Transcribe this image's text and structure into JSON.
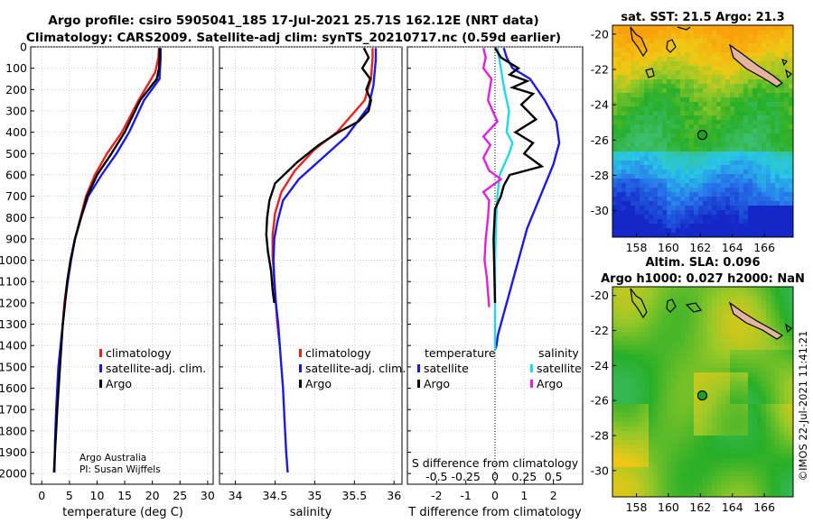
{
  "title": {
    "line1": "Argo profile: csiro 5905041_185 17-Jul-2021 25.71S 162.12E (NRT data)",
    "line2": "Climatology: CARS2009. Satellite-adj clim: synTS_20210717.nc (0.59d earlier)"
  },
  "footer": {
    "credit1": "Argo Australia",
    "credit2": "PI: Susan Wijffels",
    "imos": "©IMOS 22-Jul-2021 11:41:21"
  },
  "colors": {
    "argo": "#000000",
    "climatology": "#e8231e",
    "satellite": "#1a1ae6",
    "sat_salinity": "#22d8e8",
    "argo_salinity": "#e020e0"
  },
  "chart_data": [
    {
      "id": "temperature",
      "type": "line",
      "xlabel": "temperature (deg C)",
      "ylabel": "",
      "xlim": [
        -2,
        31
      ],
      "ylim": [
        0,
        2050
      ],
      "y_inverted": true,
      "xticks": [
        0,
        5,
        10,
        15,
        20,
        25,
        30
      ],
      "yticks": [
        0,
        100,
        200,
        300,
        400,
        500,
        600,
        700,
        800,
        900,
        1000,
        1100,
        1200,
        1300,
        1400,
        1500,
        1600,
        1700,
        1800,
        1900,
        2000
      ],
      "grid": true,
      "legend_position": "bottom-right",
      "series": [
        {
          "name": "climatology",
          "color_key": "climatology",
          "x": [
            21.2,
            21.1,
            20.5,
            17.5,
            14.5,
            11.8,
            9.6,
            8.0,
            7.0,
            6.0,
            5.2,
            4.6,
            4.1,
            3.8
          ],
          "y": [
            5,
            50,
            120,
            250,
            400,
            500,
            600,
            700,
            800,
            900,
            1000,
            1100,
            1200,
            1300
          ]
        },
        {
          "name": "satellite-adj. clim.",
          "color_key": "satellite",
          "x": [
            21.5,
            21.5,
            21.3,
            18.5,
            15.8,
            13.5,
            10.8,
            8.4,
            7.1,
            6.0,
            5.3,
            4.7,
            4.2,
            3.8,
            3.0,
            2.6,
            2.4,
            2.3
          ],
          "y": [
            5,
            50,
            150,
            250,
            400,
            500,
            600,
            700,
            800,
            900,
            1000,
            1100,
            1200,
            1300,
            1500,
            1700,
            1850,
            1995
          ]
        },
        {
          "name": "Argo",
          "color_key": "argo",
          "x": [
            21.3,
            21.3,
            21.2,
            20.8,
            17.8,
            15.0,
            12.6,
            10.0,
            8.2,
            7.1,
            6.0,
            5.2,
            4.6,
            4.2,
            3.8,
            3.3,
            2.8,
            2.5,
            2.2
          ],
          "y": [
            5,
            60,
            100,
            150,
            250,
            400,
            500,
            600,
            700,
            800,
            900,
            1000,
            1100,
            1200,
            1300,
            1500,
            1700,
            1850,
            1995
          ]
        }
      ]
    },
    {
      "id": "salinity",
      "type": "line",
      "xlabel": "salinity",
      "ylabel": "",
      "xlim": [
        33.8,
        36.1
      ],
      "ylim": [
        0,
        2050
      ],
      "y_inverted": true,
      "xticks": [
        34,
        34.5,
        35,
        35.5,
        36
      ],
      "grid": true,
      "legend_position": "bottom-right",
      "series": [
        {
          "name": "climatology",
          "color_key": "climatology",
          "x": [
            35.73,
            35.73,
            35.71,
            35.63,
            35.28,
            35.0,
            34.75,
            34.58,
            34.5,
            34.47,
            34.47,
            34.49,
            34.51,
            34.53,
            34.56
          ],
          "y": [
            5,
            50,
            150,
            250,
            400,
            480,
            580,
            680,
            780,
            880,
            980,
            1080,
            1200,
            1300,
            1400
          ]
        },
        {
          "name": "satellite-adj. clim.",
          "color_key": "satellite",
          "x": [
            35.77,
            35.77,
            35.74,
            35.68,
            35.4,
            35.1,
            34.8,
            34.6,
            34.53,
            34.49,
            34.48,
            34.49,
            34.51,
            34.54,
            34.57,
            34.6,
            34.62,
            34.64,
            34.66
          ],
          "y": [
            5,
            60,
            180,
            280,
            420,
            520,
            620,
            720,
            820,
            900,
            1000,
            1100,
            1200,
            1300,
            1450,
            1600,
            1750,
            1900,
            1995
          ]
        },
        {
          "name": "Argo",
          "color_key": "argo",
          "x": [
            35.62,
            35.68,
            35.6,
            35.7,
            35.65,
            35.71,
            35.68,
            35.55,
            35.3,
            35.05,
            34.78,
            34.5,
            34.43,
            34.4,
            34.39,
            34.41,
            34.45,
            34.47,
            34.49
          ],
          "y": [
            5,
            50,
            100,
            150,
            200,
            250,
            300,
            350,
            400,
            460,
            540,
            640,
            720,
            800,
            880,
            960,
            1050,
            1140,
            1200
          ]
        }
      ]
    },
    {
      "id": "difference",
      "type": "line",
      "xlabel": "T difference from climatology",
      "x2label": "S difference from climatology",
      "xlim": [
        -3,
        3
      ],
      "x2lim": [
        -0.75,
        0.75
      ],
      "ylim": [
        0,
        2050
      ],
      "y_inverted": true,
      "xticks": [
        -2,
        -1,
        0,
        1,
        2
      ],
      "xtick_labels": [
        "-2",
        "-1",
        "0",
        "1",
        "2"
      ],
      "x2ticks": [
        -0.5,
        -0.25,
        0,
        0.25,
        0.5
      ],
      "x2tick_labels": [
        "-0.5",
        "-0.25",
        "0",
        "0.25",
        "0.5"
      ],
      "grid": true,
      "legend_position": "bottom",
      "legend_headers": [
        "temperature",
        "salinity"
      ],
      "series": [
        {
          "name": "satellite",
          "group": "temperature",
          "color_key": "satellite",
          "axis": "x",
          "x": [
            0.3,
            0.4,
            0.6,
            1.2,
            1.7,
            2.1,
            2.2,
            2.0,
            1.7,
            1.4,
            1.1,
            0.9,
            0.7,
            0.5,
            0.3,
            0.1,
            0.05,
            0.0
          ],
          "y": [
            5,
            50,
            100,
            150,
            250,
            350,
            450,
            550,
            650,
            750,
            850,
            950,
            1050,
            1150,
            1250,
            1350,
            1400,
            1420
          ]
        },
        {
          "name": "Argo",
          "group": "temperature",
          "color_key": "argo",
          "axis": "x",
          "x": [
            0.0,
            0.2,
            0.8,
            0.5,
            1.1,
            0.6,
            1.3,
            0.9,
            1.4,
            0.7,
            1.3,
            1.0,
            1.6,
            0.5,
            0.3,
            0.2,
            0.0,
            -0.05,
            0.0
          ],
          "y": [
            5,
            50,
            100,
            130,
            160,
            190,
            220,
            270,
            340,
            400,
            450,
            500,
            560,
            600,
            650,
            700,
            760,
            900,
            1200
          ]
        },
        {
          "name": "satellite",
          "group": "salinity",
          "color_key": "sat_salinity",
          "axis": "x2",
          "x": [
            0.02,
            0.05,
            0.08,
            0.12,
            0.1,
            0.15,
            0.12,
            0.08,
            0.04,
            0.02,
            0.01,
            0.0,
            0.0,
            0.0,
            0.0
          ],
          "y": [
            5,
            100,
            200,
            300,
            400,
            450,
            500,
            550,
            600,
            700,
            800,
            1000,
            1200,
            1350,
            1420
          ]
        },
        {
          "name": "Argo",
          "group": "salinity",
          "color_key": "argo_salinity",
          "axis": "x2",
          "x": [
            -0.1,
            -0.08,
            -0.1,
            -0.03,
            -0.06,
            0.02,
            -0.1,
            -0.04,
            -0.1,
            -0.05,
            0.05,
            -0.1,
            -0.05,
            -0.06,
            -0.08,
            -0.09,
            -0.07,
            -0.06,
            -0.05
          ],
          "y": [
            5,
            50,
            100,
            150,
            250,
            350,
            420,
            460,
            520,
            580,
            620,
            680,
            720,
            800,
            900,
            1000,
            1080,
            1150,
            1220
          ]
        }
      ]
    },
    {
      "id": "sst_map",
      "type": "heatmap",
      "title": "sat. SST: 21.5 Argo: 21.3",
      "xticks": [
        158,
        160,
        162,
        164,
        166
      ],
      "yticks": [
        -20,
        -22,
        -24,
        -26,
        -28,
        -30
      ],
      "xlim": [
        156.5,
        167.8
      ],
      "ylim": [
        -31.5,
        -19.5
      ],
      "float_marker": {
        "lon": 162.12,
        "lat": -25.71
      }
    },
    {
      "id": "sla_map",
      "type": "heatmap",
      "title_line1": "Altim. SLA: 0.096",
      "title_line2": "Argo h1000: 0.027 h2000: NaN",
      "xticks": [
        158,
        160,
        162,
        164,
        166
      ],
      "yticks": [
        -20,
        -22,
        -24,
        -26,
        -28,
        -30
      ],
      "xlim": [
        156.5,
        167.8
      ],
      "ylim": [
        -31.5,
        -19.5
      ],
      "float_marker": {
        "lon": 162.12,
        "lat": -25.71
      }
    }
  ]
}
